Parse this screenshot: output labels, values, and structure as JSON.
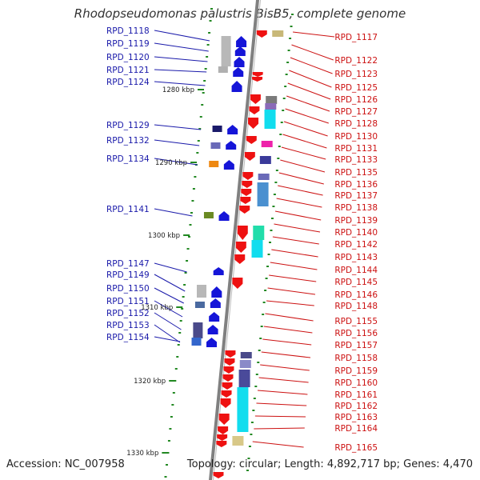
{
  "title": "Rhodopseudomonas palustris BisB5, complete genome",
  "accession_text": "Accession: NC_007958",
  "summary_text": "Topology: circular; Length: 4,892,717 bp; Genes: 4,470",
  "colors": {
    "left_label": "#1a1aaa",
    "right_label": "#cc1111",
    "left_gene": "#1515d8",
    "right_gene": "#ee1111",
    "tick": "#228822",
    "backbone": "#808080"
  },
  "left_labels": [
    "RPD_1118",
    "RPD_1119",
    "RPD_1120",
    "RPD_1121",
    "RPD_1124",
    "RPD_1129",
    "RPD_1132",
    "RPD_1134",
    "RPD_1141",
    "RPD_1147",
    "RPD_1149",
    "RPD_1150",
    "RPD_1151",
    "RPD_1152",
    "RPD_1153",
    "RPD_1154"
  ],
  "right_labels": [
    "RPD_1117",
    "RPD_1122",
    "RPD_1123",
    "RPD_1125",
    "RPD_1126",
    "RPD_1127",
    "RPD_1128",
    "RPD_1130",
    "RPD_1131",
    "RPD_1133",
    "RPD_1135",
    "RPD_1136",
    "RPD_1137",
    "RPD_1138",
    "RPD_1139",
    "RPD_1140",
    "RPD_1142",
    "RPD_1143",
    "RPD_1144",
    "RPD_1145",
    "RPD_1146",
    "RPD_1148",
    "RPD_1155",
    "RPD_1156",
    "RPD_1157",
    "RPD_1158",
    "RPD_1159",
    "RPD_1160",
    "RPD_1161",
    "RPD_1162",
    "RPD_1163",
    "RPD_1164",
    "RPD_1165"
  ],
  "kbp_labels": [
    "1280 kbp",
    "1290 kbp",
    "1300 kbp",
    "1310 kbp",
    "1320 kbp",
    "1330 kbp"
  ]
}
